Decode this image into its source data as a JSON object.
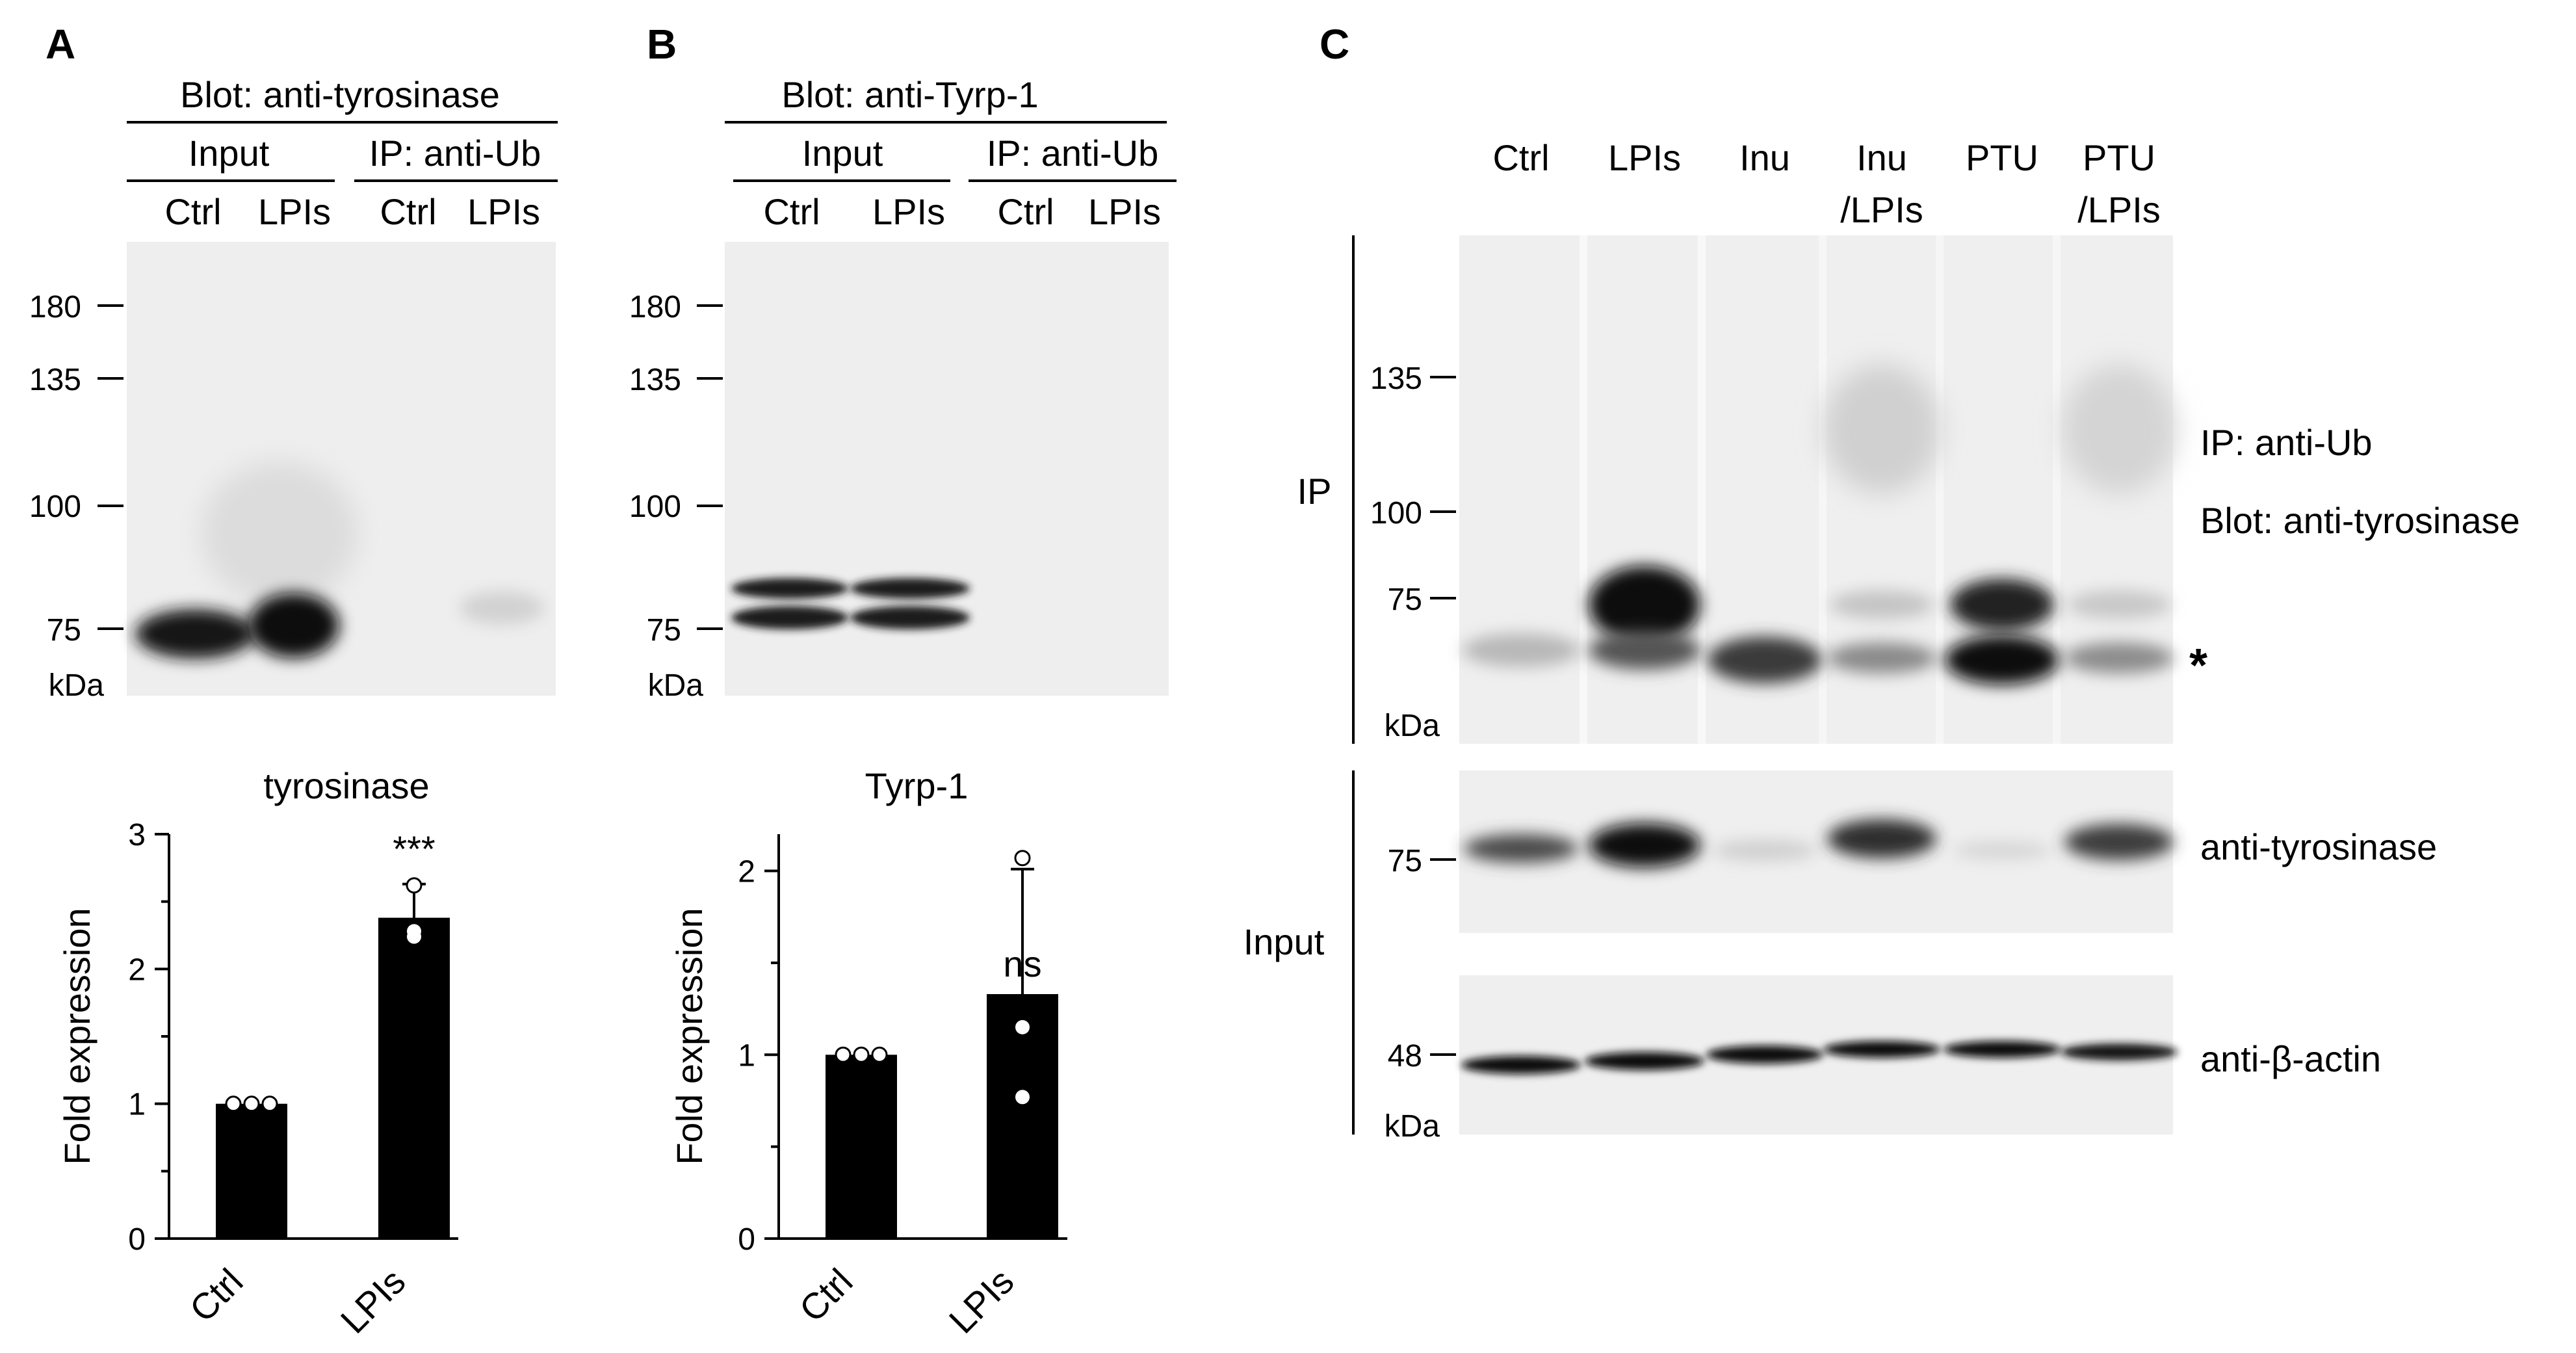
{
  "panels": {
    "a": "A",
    "b": "B",
    "c": "C"
  },
  "panel_a": {
    "blot_title": "Blot: anti-tyrosinase",
    "group_input": "Input",
    "group_ip": "IP: anti-Ub",
    "lanes": [
      "Ctrl",
      "LPIs",
      "Ctrl",
      "LPIs"
    ],
    "markers": [
      "180",
      "135",
      "100",
      "75"
    ],
    "unit": "kDa"
  },
  "panel_b": {
    "blot_title": "Blot: anti-Tyrp-1",
    "group_input": "Input",
    "group_ip": "IP: anti-Ub",
    "lanes": [
      "Ctrl",
      "LPIs",
      "Ctrl",
      "LPIs"
    ],
    "markers": [
      "180",
      "135",
      "100",
      "75"
    ],
    "unit": "kDa"
  },
  "panel_c": {
    "lanes": [
      [
        "Ctrl"
      ],
      [
        "LPIs"
      ],
      [
        "Inu"
      ],
      [
        "Inu",
        "/LPIs"
      ],
      [
        "PTU"
      ],
      [
        "PTU",
        "/LPIs"
      ]
    ],
    "ip_label": "IP",
    "input_label": "Input",
    "ip_markers": [
      "135",
      "100",
      "75"
    ],
    "input_marker": "75",
    "actin_marker": "48",
    "unit": "kDa",
    "right_labels": {
      "ip_line1": "IP: anti-Ub",
      "ip_line2": "Blot: anti-tyrosinase",
      "asterisk": "*",
      "input_blot": "anti-tyrosinase",
      "actin_blot": "anti-β-actin"
    }
  },
  "chart_data": [
    {
      "type": "bar",
      "title": "tyrosinase",
      "ylabel": "Fold expression",
      "xlabel": "",
      "categories": [
        "Ctrl",
        "LPIs"
      ],
      "values": [
        1.0,
        2.38
      ],
      "error": [
        0,
        0.25
      ],
      "points": [
        [
          1.0,
          1.0,
          1.0
        ],
        [
          2.62,
          2.28,
          2.24
        ]
      ],
      "significance": [
        "",
        "***"
      ],
      "ylim": [
        0,
        3
      ],
      "yticks": [
        0,
        1,
        2,
        3
      ],
      "grid": false
    },
    {
      "type": "bar",
      "title": "Tyrp-1",
      "ylabel": "Fold expression",
      "xlabel": "",
      "categories": [
        "Ctrl",
        "LPIs"
      ],
      "values": [
        1.0,
        1.33
      ],
      "error": [
        0,
        0.68
      ],
      "points": [
        [
          1.0,
          1.0,
          1.0
        ],
        [
          2.07,
          1.15,
          0.77
        ]
      ],
      "significance": [
        "",
        "ns"
      ],
      "ylim": [
        0,
        2.2
      ],
      "yticks": [
        0,
        1,
        2
      ],
      "grid": false
    }
  ]
}
